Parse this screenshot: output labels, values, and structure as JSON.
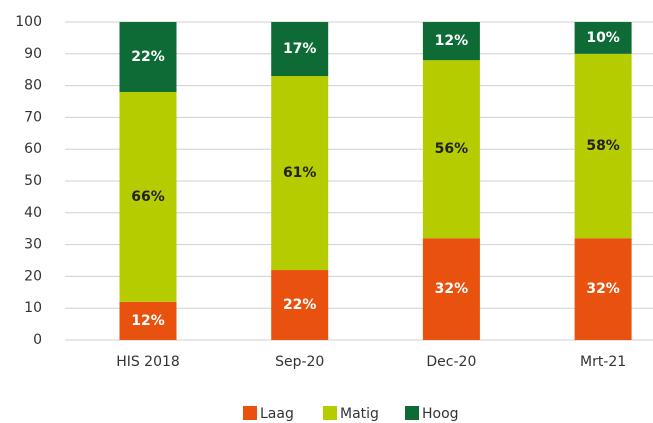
{
  "chart_data": {
    "type": "stacked-bar",
    "categories": [
      "HIS 2018",
      "Sep-20",
      "Dec-20",
      "Mrt-21"
    ],
    "series": [
      {
        "name": "Laag",
        "color": "#e8520e",
        "values": [
          12,
          22,
          32,
          32
        ],
        "value_labels": [
          "12%",
          "22%",
          "32%",
          "32%"
        ]
      },
      {
        "name": "Matig",
        "color": "#b5cc00",
        "values": [
          66,
          61,
          56,
          58
        ],
        "value_labels": [
          "66%",
          "61%",
          "56%",
          "58%"
        ]
      },
      {
        "name": "Hoog",
        "color": "#0e6b35",
        "values": [
          22,
          17,
          12,
          10
        ],
        "value_labels": [
          "22%",
          "17%",
          "12%",
          "10%"
        ]
      }
    ],
    "ylim": [
      0,
      100
    ],
    "yticks": [
      0,
      10,
      20,
      30,
      40,
      50,
      60,
      70,
      80,
      90,
      100
    ],
    "grid": true,
    "legend": "bottom"
  }
}
